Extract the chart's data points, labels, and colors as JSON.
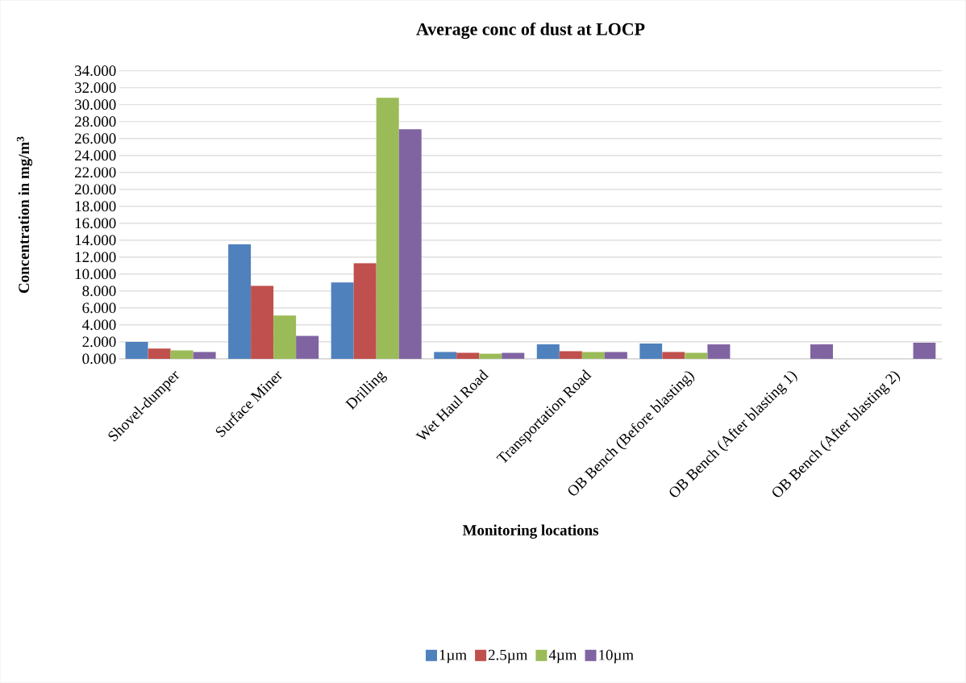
{
  "chart_data": {
    "type": "bar",
    "title": "Average conc of dust at LOCP",
    "xlabel": "Monitoring locations",
    "ylabel": "Concentration in mg/m$^{3}$",
    "categories": [
      "Shovel-dumper",
      "Surface Miner",
      "Drilling",
      "Wet Haul Road",
      "Transportation Road",
      "OB Bench (Before blasting)",
      "OB Bench (After blasting 1)",
      "OB Bench (After blasting 2)"
    ],
    "series": [
      {
        "name": "1µm",
        "color": "#4f81bd",
        "values": [
          2.0,
          13.5,
          9.0,
          0.8,
          1.7,
          1.8,
          null,
          null
        ]
      },
      {
        "name": "2.5µm",
        "color": "#c0504d",
        "values": [
          1.2,
          8.6,
          11.3,
          0.7,
          0.9,
          0.8,
          null,
          null
        ]
      },
      {
        "name": "4µm",
        "color": "#9bbb59",
        "values": [
          1.0,
          5.1,
          30.8,
          0.6,
          0.8,
          0.7,
          null,
          null
        ]
      },
      {
        "name": "10µm",
        "color": "#8064a2",
        "values": [
          0.8,
          2.7,
          27.1,
          0.7,
          0.8,
          1.7,
          1.7,
          1.9
        ]
      }
    ],
    "ylim": [
      0,
      34
    ],
    "yticks": [
      {
        "value": 0,
        "label": "0.000"
      },
      {
        "value": 2,
        "label": "2.000"
      },
      {
        "value": 4,
        "label": "4.000"
      },
      {
        "value": 6,
        "label": "6.000"
      },
      {
        "value": 8,
        "label": "8.000"
      },
      {
        "value": 10,
        "label": "10.000"
      },
      {
        "value": 12,
        "label": "12.000"
      },
      {
        "value": 14,
        "label": "14.000"
      },
      {
        "value": 16,
        "label": "16.000"
      },
      {
        "value": 18,
        "label": "18.000"
      },
      {
        "value": 20,
        "label": "20.000"
      },
      {
        "value": 22,
        "label": "22.000"
      },
      {
        "value": 24,
        "label": "24.000"
      },
      {
        "value": 26,
        "label": "26.000"
      },
      {
        "value": 28,
        "label": "28.000"
      },
      {
        "value": 30,
        "label": "30.000"
      },
      {
        "value": 32,
        "label": "32.000"
      },
      {
        "value": 34,
        "label": "34.000"
      }
    ],
    "grid": "y",
    "legend": "bottom"
  }
}
